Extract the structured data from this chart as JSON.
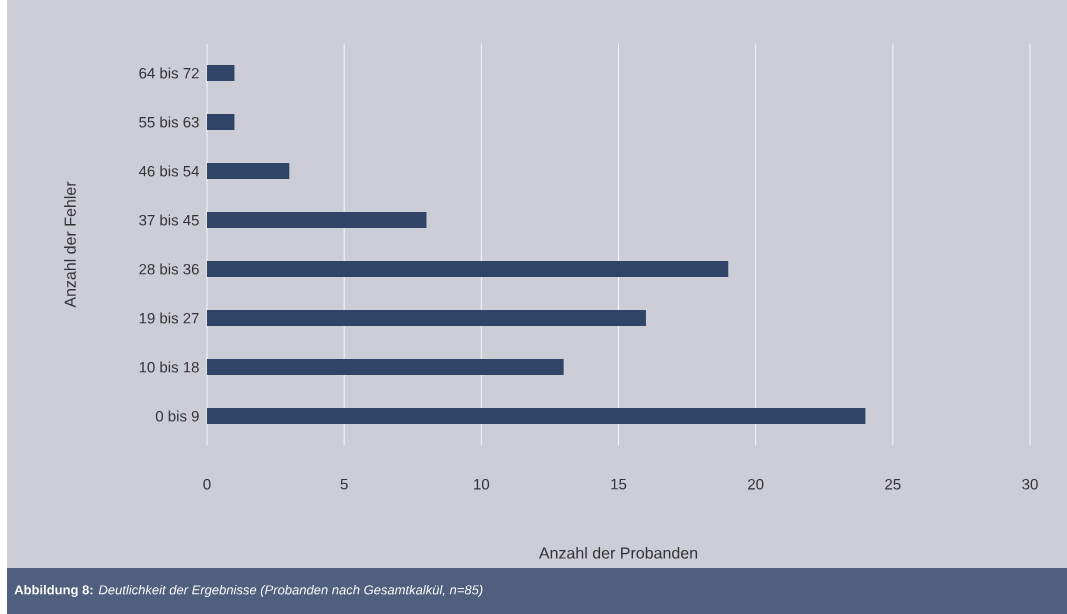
{
  "chart_data": {
    "type": "bar",
    "orientation": "horizontal",
    "xlabel": "Anzahl der Probanden",
    "ylabel": "Anzahl der Fehler",
    "categories": [
      "64 bis 72",
      "55 bis 63",
      "46 bis 54",
      "37 bis 45",
      "28 bis 36",
      "19 bis 27",
      "10 bis 18",
      "0 bis 9"
    ],
    "values": [
      1,
      1,
      3,
      8,
      19,
      16,
      13,
      24
    ],
    "color": "#2f4466",
    "xlim": [
      0,
      30
    ],
    "xticks": [
      0,
      5,
      10,
      15,
      20,
      25,
      30
    ],
    "grid": "x",
    "annotations": [
      "**Abbildung 8:** *Deutlichkeit der Ergebnisse (Probanden nach Gesamtkalkül, n=85)*"
    ]
  }
}
